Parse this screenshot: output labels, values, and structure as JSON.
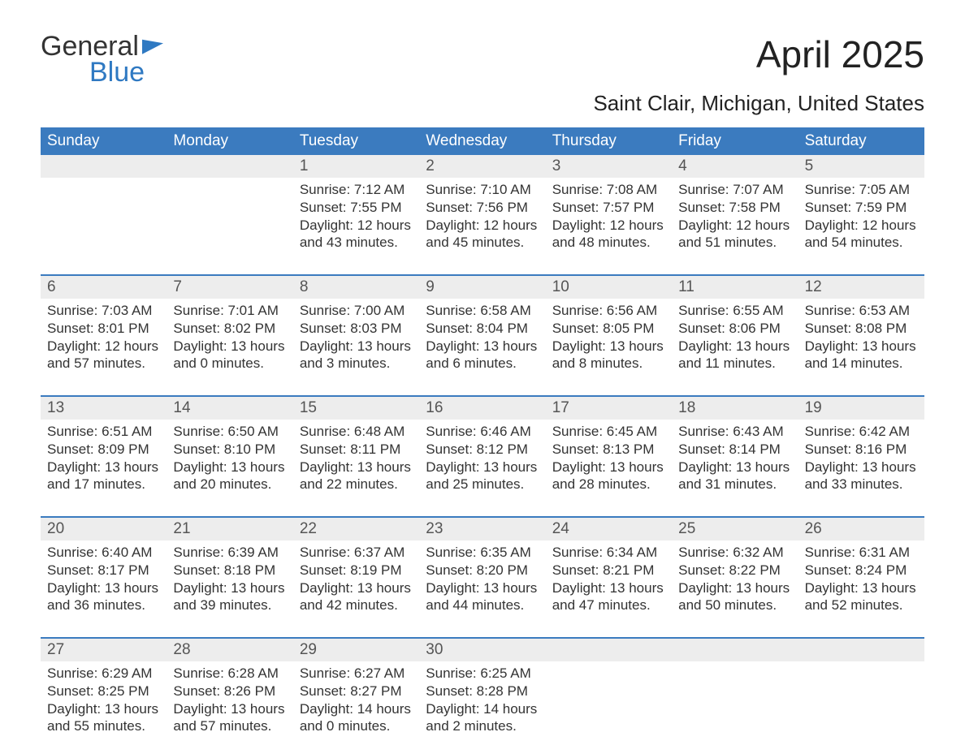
{
  "logo": {
    "text_general": "General",
    "text_blue": "Blue"
  },
  "title": "April 2025",
  "location": "Saint Clair, Michigan, United States",
  "colors": {
    "header_bg": "#3b7bbf",
    "header_text": "#ffffff",
    "daynum_bg": "#ededed",
    "rule": "#3b7bbf",
    "body_text": "#333333",
    "logo_blue": "#2f79c2",
    "page_bg": "#ffffff"
  },
  "typography": {
    "title_fontsize": 46,
    "location_fontsize": 26,
    "dayheader_fontsize": 19,
    "daynum_fontsize": 19,
    "cell_fontsize": 17
  },
  "day_names": [
    "Sunday",
    "Monday",
    "Tuesday",
    "Wednesday",
    "Thursday",
    "Friday",
    "Saturday"
  ],
  "weeks": [
    {
      "nums": [
        "",
        "",
        "1",
        "2",
        "3",
        "4",
        "5"
      ],
      "cells": [
        {},
        {},
        {
          "sunrise": "Sunrise: 7:12 AM",
          "sunset": "Sunset: 7:55 PM",
          "day1": "Daylight: 12 hours",
          "day2": "and 43 minutes."
        },
        {
          "sunrise": "Sunrise: 7:10 AM",
          "sunset": "Sunset: 7:56 PM",
          "day1": "Daylight: 12 hours",
          "day2": "and 45 minutes."
        },
        {
          "sunrise": "Sunrise: 7:08 AM",
          "sunset": "Sunset: 7:57 PM",
          "day1": "Daylight: 12 hours",
          "day2": "and 48 minutes."
        },
        {
          "sunrise": "Sunrise: 7:07 AM",
          "sunset": "Sunset: 7:58 PM",
          "day1": "Daylight: 12 hours",
          "day2": "and 51 minutes."
        },
        {
          "sunrise": "Sunrise: 7:05 AM",
          "sunset": "Sunset: 7:59 PM",
          "day1": "Daylight: 12 hours",
          "day2": "and 54 minutes."
        }
      ]
    },
    {
      "nums": [
        "6",
        "7",
        "8",
        "9",
        "10",
        "11",
        "12"
      ],
      "cells": [
        {
          "sunrise": "Sunrise: 7:03 AM",
          "sunset": "Sunset: 8:01 PM",
          "day1": "Daylight: 12 hours",
          "day2": "and 57 minutes."
        },
        {
          "sunrise": "Sunrise: 7:01 AM",
          "sunset": "Sunset: 8:02 PM",
          "day1": "Daylight: 13 hours",
          "day2": "and 0 minutes."
        },
        {
          "sunrise": "Sunrise: 7:00 AM",
          "sunset": "Sunset: 8:03 PM",
          "day1": "Daylight: 13 hours",
          "day2": "and 3 minutes."
        },
        {
          "sunrise": "Sunrise: 6:58 AM",
          "sunset": "Sunset: 8:04 PM",
          "day1": "Daylight: 13 hours",
          "day2": "and 6 minutes."
        },
        {
          "sunrise": "Sunrise: 6:56 AM",
          "sunset": "Sunset: 8:05 PM",
          "day1": "Daylight: 13 hours",
          "day2": "and 8 minutes."
        },
        {
          "sunrise": "Sunrise: 6:55 AM",
          "sunset": "Sunset: 8:06 PM",
          "day1": "Daylight: 13 hours",
          "day2": "and 11 minutes."
        },
        {
          "sunrise": "Sunrise: 6:53 AM",
          "sunset": "Sunset: 8:08 PM",
          "day1": "Daylight: 13 hours",
          "day2": "and 14 minutes."
        }
      ]
    },
    {
      "nums": [
        "13",
        "14",
        "15",
        "16",
        "17",
        "18",
        "19"
      ],
      "cells": [
        {
          "sunrise": "Sunrise: 6:51 AM",
          "sunset": "Sunset: 8:09 PM",
          "day1": "Daylight: 13 hours",
          "day2": "and 17 minutes."
        },
        {
          "sunrise": "Sunrise: 6:50 AM",
          "sunset": "Sunset: 8:10 PM",
          "day1": "Daylight: 13 hours",
          "day2": "and 20 minutes."
        },
        {
          "sunrise": "Sunrise: 6:48 AM",
          "sunset": "Sunset: 8:11 PM",
          "day1": "Daylight: 13 hours",
          "day2": "and 22 minutes."
        },
        {
          "sunrise": "Sunrise: 6:46 AM",
          "sunset": "Sunset: 8:12 PM",
          "day1": "Daylight: 13 hours",
          "day2": "and 25 minutes."
        },
        {
          "sunrise": "Sunrise: 6:45 AM",
          "sunset": "Sunset: 8:13 PM",
          "day1": "Daylight: 13 hours",
          "day2": "and 28 minutes."
        },
        {
          "sunrise": "Sunrise: 6:43 AM",
          "sunset": "Sunset: 8:14 PM",
          "day1": "Daylight: 13 hours",
          "day2": "and 31 minutes."
        },
        {
          "sunrise": "Sunrise: 6:42 AM",
          "sunset": "Sunset: 8:16 PM",
          "day1": "Daylight: 13 hours",
          "day2": "and 33 minutes."
        }
      ]
    },
    {
      "nums": [
        "20",
        "21",
        "22",
        "23",
        "24",
        "25",
        "26"
      ],
      "cells": [
        {
          "sunrise": "Sunrise: 6:40 AM",
          "sunset": "Sunset: 8:17 PM",
          "day1": "Daylight: 13 hours",
          "day2": "and 36 minutes."
        },
        {
          "sunrise": "Sunrise: 6:39 AM",
          "sunset": "Sunset: 8:18 PM",
          "day1": "Daylight: 13 hours",
          "day2": "and 39 minutes."
        },
        {
          "sunrise": "Sunrise: 6:37 AM",
          "sunset": "Sunset: 8:19 PM",
          "day1": "Daylight: 13 hours",
          "day2": "and 42 minutes."
        },
        {
          "sunrise": "Sunrise: 6:35 AM",
          "sunset": "Sunset: 8:20 PM",
          "day1": "Daylight: 13 hours",
          "day2": "and 44 minutes."
        },
        {
          "sunrise": "Sunrise: 6:34 AM",
          "sunset": "Sunset: 8:21 PM",
          "day1": "Daylight: 13 hours",
          "day2": "and 47 minutes."
        },
        {
          "sunrise": "Sunrise: 6:32 AM",
          "sunset": "Sunset: 8:22 PM",
          "day1": "Daylight: 13 hours",
          "day2": "and 50 minutes."
        },
        {
          "sunrise": "Sunrise: 6:31 AM",
          "sunset": "Sunset: 8:24 PM",
          "day1": "Daylight: 13 hours",
          "day2": "and 52 minutes."
        }
      ]
    },
    {
      "nums": [
        "27",
        "28",
        "29",
        "30",
        "",
        "",
        ""
      ],
      "cells": [
        {
          "sunrise": "Sunrise: 6:29 AM",
          "sunset": "Sunset: 8:25 PM",
          "day1": "Daylight: 13 hours",
          "day2": "and 55 minutes."
        },
        {
          "sunrise": "Sunrise: 6:28 AM",
          "sunset": "Sunset: 8:26 PM",
          "day1": "Daylight: 13 hours",
          "day2": "and 57 minutes."
        },
        {
          "sunrise": "Sunrise: 6:27 AM",
          "sunset": "Sunset: 8:27 PM",
          "day1": "Daylight: 14 hours",
          "day2": "and 0 minutes."
        },
        {
          "sunrise": "Sunrise: 6:25 AM",
          "sunset": "Sunset: 8:28 PM",
          "day1": "Daylight: 14 hours",
          "day2": "and 2 minutes."
        },
        {},
        {},
        {}
      ]
    }
  ]
}
